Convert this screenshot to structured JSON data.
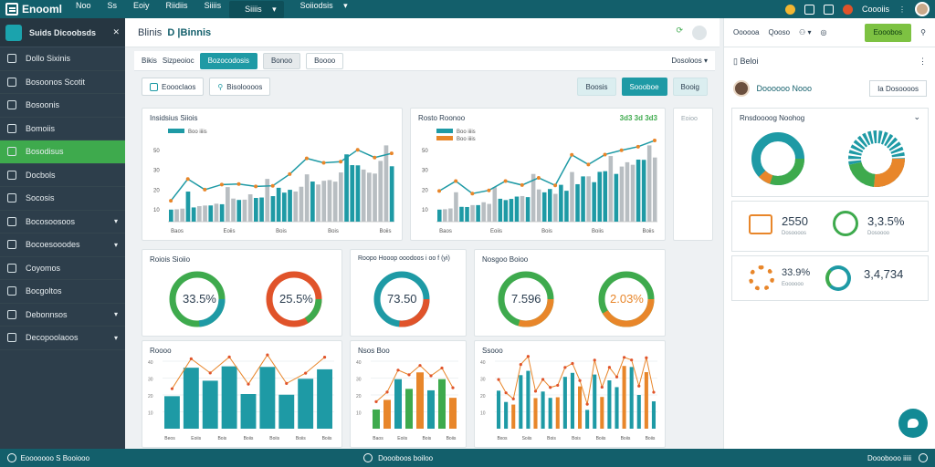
{
  "topbar": {
    "brand": "Enooml",
    "nav": [
      "Noo",
      "Ss",
      "Eoiy",
      "Riidiis",
      "Siiiis",
      "Siiiis",
      "Soiiodsis"
    ],
    "active_index": 5,
    "user": "Coooiis"
  },
  "sidebar": {
    "header": "Suids Dicoobsds",
    "items": [
      {
        "label": "Dollo Sixinis",
        "icon": "shield-icon",
        "expand": false
      },
      {
        "label": "Bosoonos Scotit",
        "icon": "book-icon",
        "expand": false
      },
      {
        "label": "Bosoonis",
        "icon": "pen-icon",
        "expand": false
      },
      {
        "label": "Bomoiis",
        "icon": "tools-icon",
        "expand": false
      },
      {
        "label": "Bosodisus",
        "icon": "grid-icon",
        "expand": false
      },
      {
        "label": "Docbols",
        "icon": "document-icon",
        "expand": false
      },
      {
        "label": "Socosis",
        "icon": "table-icon",
        "expand": false
      },
      {
        "label": "Bocosoosoos",
        "icon": "folder-icon",
        "expand": true
      },
      {
        "label": "Bocoesooodes",
        "icon": "calendar-icon",
        "expand": true
      },
      {
        "label": "Coyomos",
        "icon": "chart-icon",
        "expand": false
      },
      {
        "label": "Bocgoltos",
        "icon": "settings-icon",
        "expand": false
      },
      {
        "label": "Debonnsos",
        "icon": "user-icon",
        "expand": true
      },
      {
        "label": "Decopoolaoos",
        "icon": "info-icon",
        "expand": true
      }
    ],
    "active_index": 4
  },
  "main": {
    "title_prefix": "Blinis",
    "title": "D |Binnis",
    "tabs": [
      {
        "label": "Bikis",
        "style": "plain"
      },
      {
        "label": "Sizpeoioc",
        "style": "plain"
      },
      {
        "label": "Bozocodosis",
        "style": "active"
      },
      {
        "label": "Bonoo",
        "style": "grey"
      },
      {
        "label": "Boooo",
        "style": "outline"
      }
    ],
    "tabs_right": "Dosoloos",
    "actions": [
      {
        "label": "Eoooclaos",
        "icon": "list-icon"
      },
      {
        "label": "Bisoloooos",
        "icon": "search-icon"
      }
    ],
    "actions_right": [
      "Boosis",
      "Soooboe",
      "Booig"
    ]
  },
  "charts": {
    "c1": {
      "title": "Insidsius Siiois",
      "legend": "Boo iiiis",
      "ticks_y": [
        "50",
        "30",
        "20",
        "10"
      ],
      "ticks_x": [
        "Baos",
        "Eoiis",
        "Bois",
        "Bois",
        "Boiis"
      ]
    },
    "c2": {
      "title": "Rosto Roonoo",
      "badges": "3d3 3d 3d3",
      "legend": [
        "Boo iiiis",
        "Boo iiiis"
      ],
      "ticks_y": [
        "50",
        "30",
        "20",
        "10"
      ],
      "ticks_x": [
        "Baos",
        "Eoiis",
        "Bois",
        "Boiis",
        "Boiis"
      ]
    },
    "d1": {
      "title": "Roiois Sioiio",
      "a": "33.5%",
      "b": "25.5%"
    },
    "d2": {
      "title": "Roopo Hooop ooodoos i oo f (yi)",
      "a": "73.50"
    },
    "d3": {
      "title": "Nosgoo Boioo",
      "a": "7.596",
      "b": "2.03%"
    },
    "b1": {
      "title": "Roooo",
      "ticks_x": [
        "Beos",
        "Eoiis",
        "Bois",
        "Boiis",
        "Boiis",
        "Boiis",
        "Boiis"
      ]
    },
    "b2": {
      "title": "Nsos Boo",
      "ticks_x": [
        "Baos",
        "Eoiis",
        "Bois",
        "Boiis"
      ]
    },
    "b3": {
      "title": "Ssooo",
      "ticks_x": [
        "Bxos",
        "Soiis",
        "Bois",
        "Bois",
        "Boiis",
        "Boiis",
        "Boiis"
      ]
    }
  },
  "right_panel": {
    "tools": [
      "Oooooa",
      "Qooso"
    ],
    "green_button": "Eooobos",
    "section_title": "Beloi",
    "profile_name": "Doooooo Nooo",
    "profile_button": "Ia Dosoooos",
    "summary_title": "Rnsdoooog Noohog",
    "stats": [
      {
        "value": "2550",
        "label": "Dosoooos"
      },
      {
        "value": "3,3.5%",
        "label": "Dosoooo"
      },
      {
        "value": "33.9%",
        "label": "Eoooooo"
      },
      {
        "value": "3,4,734",
        "label": ""
      }
    ]
  },
  "footer": {
    "left": "Eooooooo S Booiooo",
    "mid": "Doooboos boiloo",
    "right": "Dooobooo iiiii"
  },
  "colors": {
    "teal": "#1e9aa5",
    "green": "#3eaa4d",
    "orange": "#e8862a",
    "red": "#e0532a",
    "grey": "#b8bec2"
  }
}
